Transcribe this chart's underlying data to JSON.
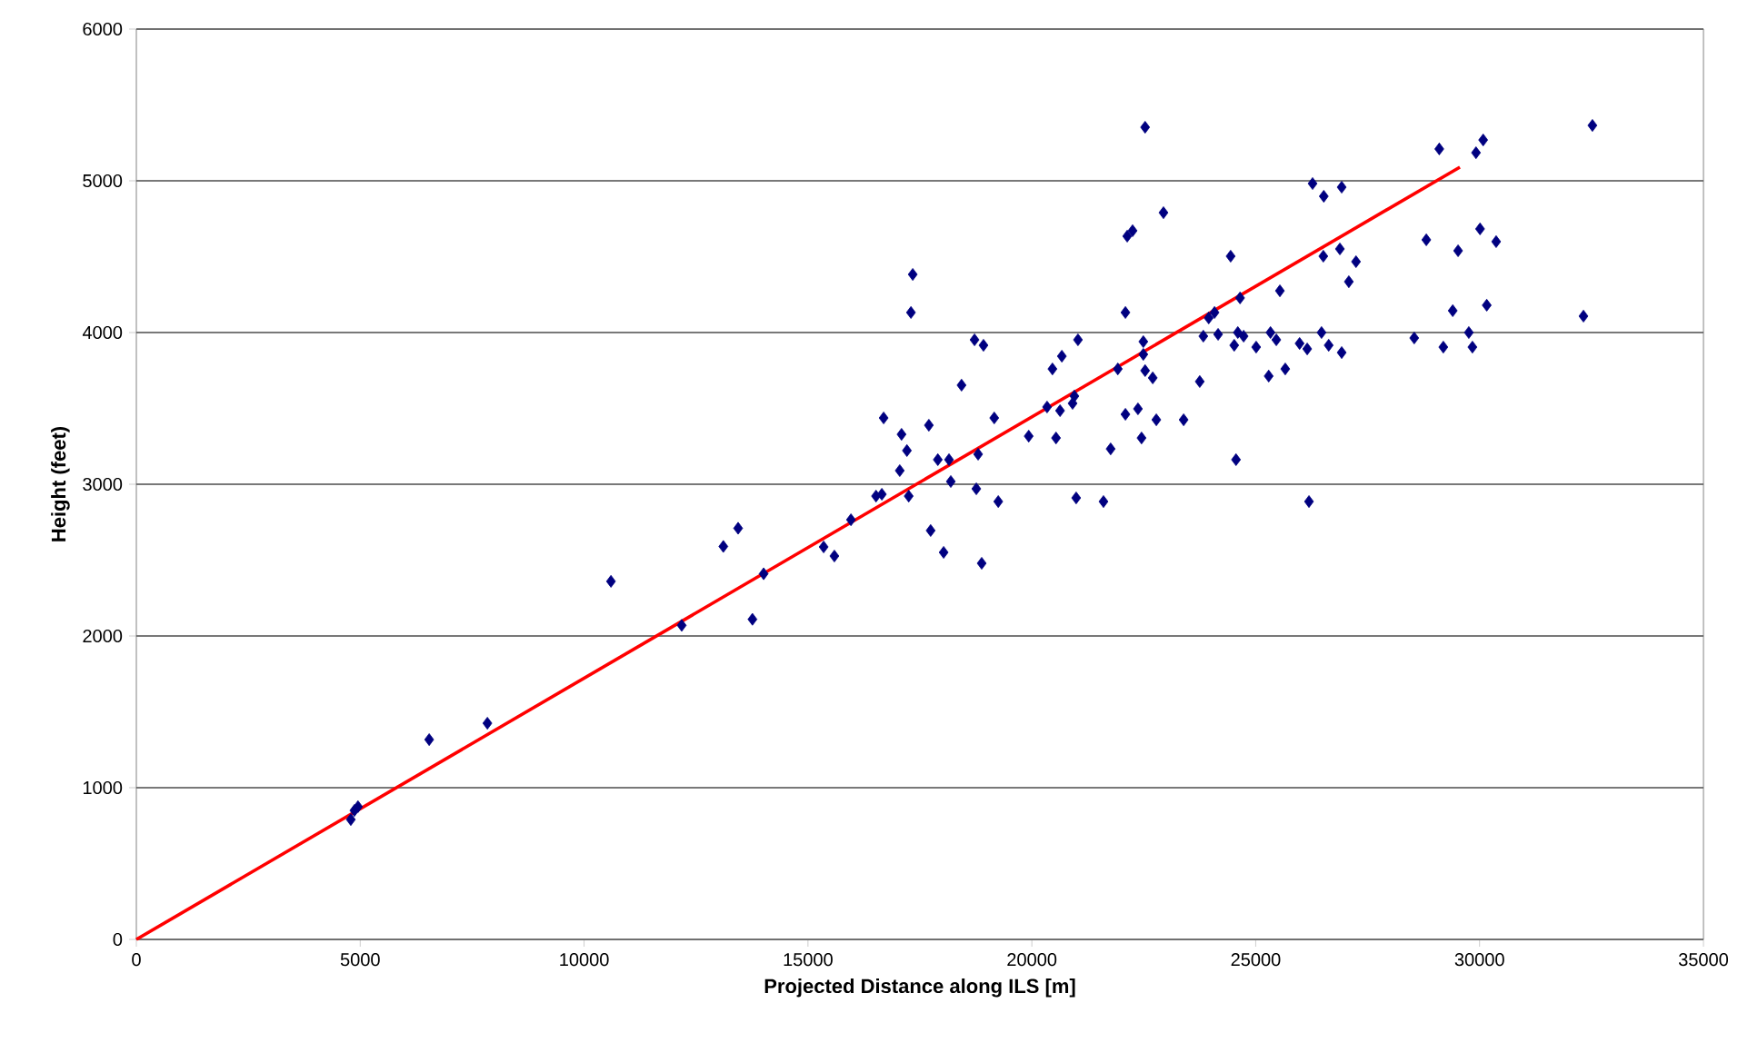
{
  "chart_data": {
    "type": "scatter",
    "xlabel": "Projected Distance along  ILS  [m]",
    "ylabel": "Height (feet)",
    "xlim": [
      0,
      35000
    ],
    "ylim": [
      0,
      6000
    ],
    "xticks": [
      0,
      5000,
      10000,
      15000,
      20000,
      25000,
      30000,
      35000
    ],
    "yticks": [
      0,
      1000,
      2000,
      3000,
      4000,
      5000,
      6000
    ],
    "grid": "y",
    "series": [
      {
        "color": "#000080",
        "marker": "diamond",
        "x": [
          4790,
          4870,
          4950,
          6540,
          7840,
          10600,
          12180,
          13110,
          13440,
          13760,
          14010,
          15350,
          15590,
          15960,
          16520,
          16650,
          16690,
          17090,
          17210,
          17050,
          17250,
          17340,
          17300,
          17700,
          17740,
          18030,
          17900,
          18150,
          18190,
          18430,
          18720,
          18920,
          18800,
          18760,
          18880,
          19160,
          19250,
          19930,
          20340,
          20540,
          20460,
          20670,
          20630,
          20910,
          20950,
          21030,
          20990,
          21600,
          21760,
          21920,
          22090,
          22090,
          22130,
          22250,
          22370,
          22450,
          22490,
          22490,
          22530,
          22700,
          22780,
          22940,
          22530,
          23390,
          23750,
          23830,
          23950,
          24080,
          24160,
          24440,
          24560,
          24650,
          24520,
          24600,
          24730,
          25010,
          25290,
          25330,
          25460,
          25540,
          25660,
          25980,
          26150,
          26190,
          26270,
          26520,
          26920,
          26470,
          26630,
          26920,
          26510,
          26880,
          27240,
          27080,
          28540,
          28810,
          29100,
          29190,
          29520,
          29400,
          29760,
          29840,
          29920,
          30080,
          30010,
          30370,
          30160,
          32320,
          32520
        ],
        "values": [
          790,
          850,
          875,
          1317,
          1425,
          2360,
          2070,
          2590,
          2710,
          2110,
          2410,
          2587,
          2527,
          2766,
          2922,
          2934,
          3437,
          3329,
          3222,
          3090,
          2922,
          4383,
          4132,
          3389,
          2695,
          2551,
          3162,
          3162,
          3018,
          3653,
          3952,
          3916,
          3198,
          2970,
          2479,
          3437,
          2886,
          3317,
          3509,
          3305,
          3760,
          3844,
          3485,
          3533,
          3581,
          3952,
          2910,
          2886,
          3233,
          3760,
          4132,
          3461,
          4635,
          4671,
          3497,
          3305,
          3940,
          3856,
          3749,
          3701,
          3425,
          4790,
          5353,
          3425,
          3677,
          3976,
          4096,
          4132,
          3988,
          4503,
          3162,
          4228,
          3916,
          4000,
          3976,
          3904,
          3713,
          4000,
          3952,
          4275,
          3760,
          3928,
          3892,
          2886,
          4982,
          4898,
          4958,
          4000,
          3916,
          3868,
          4503,
          4551,
          4467,
          4335,
          3964,
          4611,
          5210,
          3904,
          4539,
          4144,
          4000,
          3904,
          5185,
          5269,
          4683,
          4599,
          4180,
          4108,
          5365
        ]
      },
      {
        "type": "line",
        "color": "#ff0000",
        "marker": "none",
        "line_style": "solid",
        "x": [
          0,
          29560
        ],
        "values": [
          0,
          5090
        ]
      }
    ]
  }
}
